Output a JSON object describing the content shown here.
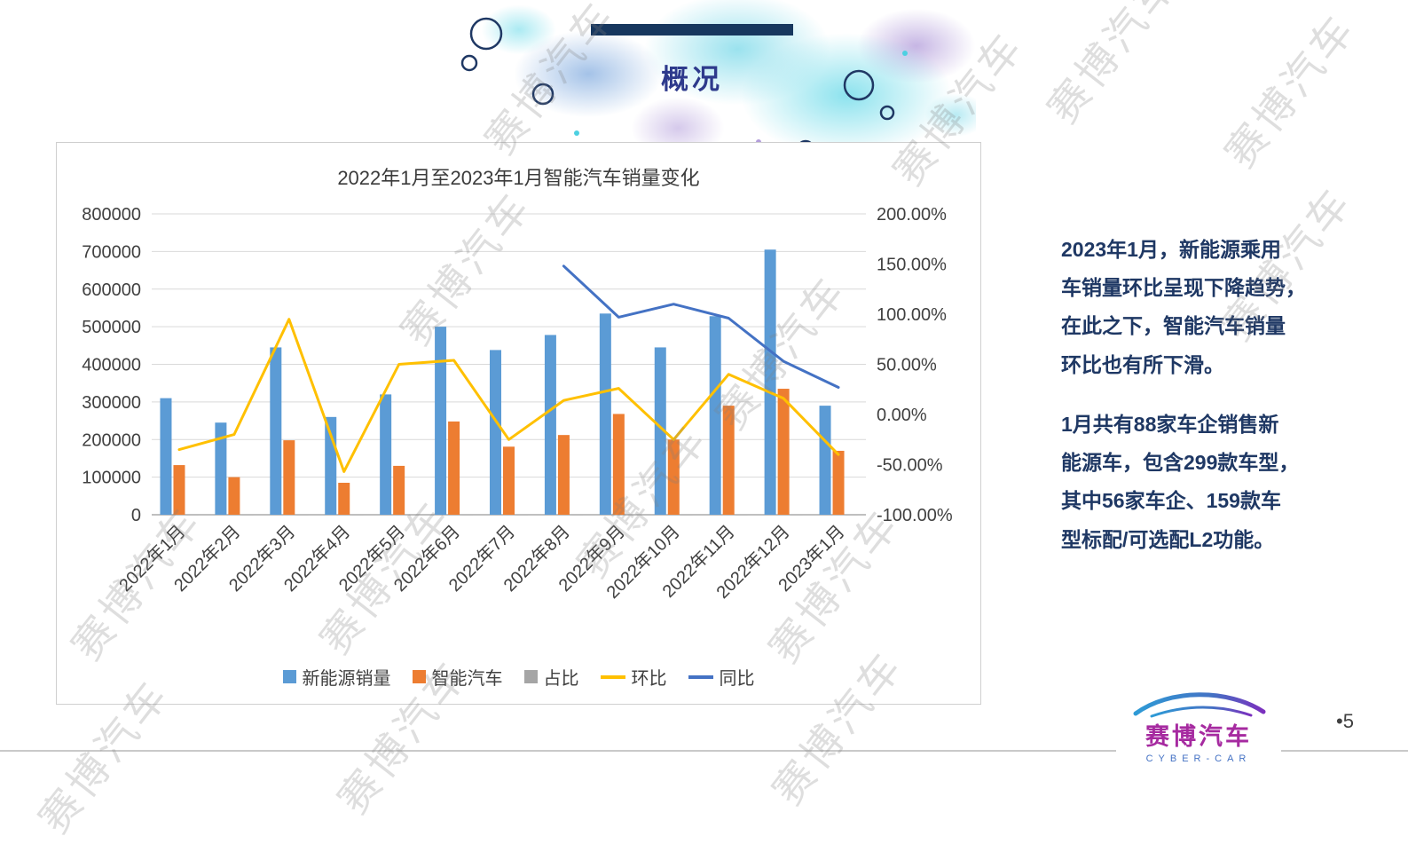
{
  "header": {
    "title": "概况"
  },
  "watermark": {
    "text": "赛博汽车"
  },
  "commentary": {
    "p1": "2023年1月，新能源乘用\n车销量环比呈现下降趋势，\n在此之下，智能汽车销量\n环比也有所下滑。",
    "p2": "1月共有88家车企销售新\n能源车，包含299款车型，\n其中56家车企、159款车\n型标配/可选配L2功能。"
  },
  "footer": {
    "logo_text": "赛博汽车",
    "logo_subtext": "CYBER-CAR",
    "page_number": "•5"
  },
  "chart_data": {
    "type": "combo",
    "title": "2022年1月至2023年1月智能汽车销量变化",
    "categories": [
      "2022年1月",
      "2022年2月",
      "2022年3月",
      "2022年4月",
      "2022年5月",
      "2022年6月",
      "2022年7月",
      "2022年8月",
      "2022年9月",
      "2022年10月",
      "2022年11月",
      "2022年12月",
      "2023年1月"
    ],
    "series": [
      {
        "name": "新能源销量",
        "type": "bar",
        "axis": "left",
        "color": "#5B9BD5",
        "values": [
          310000,
          245000,
          445000,
          260000,
          320000,
          500000,
          438000,
          478000,
          535000,
          445000,
          528000,
          705000,
          290000
        ]
      },
      {
        "name": "智能汽车",
        "type": "bar",
        "axis": "left",
        "color": "#ED7D31",
        "values": [
          132000,
          100000,
          198000,
          85000,
          130000,
          248000,
          181000,
          212000,
          268000,
          200000,
          290000,
          335000,
          170000
        ]
      },
      {
        "name": "占比",
        "type": "bar",
        "axis": "left",
        "color": "#A5A5A5",
        "values": [
          0.43,
          0.41,
          0.44,
          0.33,
          0.41,
          0.5,
          0.41,
          0.44,
          0.5,
          0.45,
          0.55,
          0.48,
          0.59
        ]
      },
      {
        "name": "环比",
        "type": "line",
        "axis": "right",
        "color": "#FFC000",
        "values": [
          -35,
          -20,
          95,
          -57,
          50,
          54,
          -25,
          14,
          26,
          -25,
          40,
          16,
          -40
        ]
      },
      {
        "name": "同比",
        "type": "line",
        "axis": "right",
        "color": "#4472C4",
        "values": [
          null,
          null,
          null,
          null,
          null,
          null,
          null,
          148,
          97,
          110,
          96,
          53,
          27
        ]
      }
    ],
    "left_axis": {
      "min": 0,
      "max": 800000,
      "step": 100000,
      "labels": [
        "0",
        "100000",
        "200000",
        "300000",
        "400000",
        "500000",
        "600000",
        "700000",
        "800000"
      ]
    },
    "right_axis": {
      "min": -100,
      "max": 200,
      "step": 50,
      "labels": [
        "-100.00%",
        "-50.00%",
        "0.00%",
        "50.00%",
        "100.00%",
        "150.00%",
        "200.00%"
      ]
    },
    "grid": true,
    "legend_position": "bottom"
  }
}
